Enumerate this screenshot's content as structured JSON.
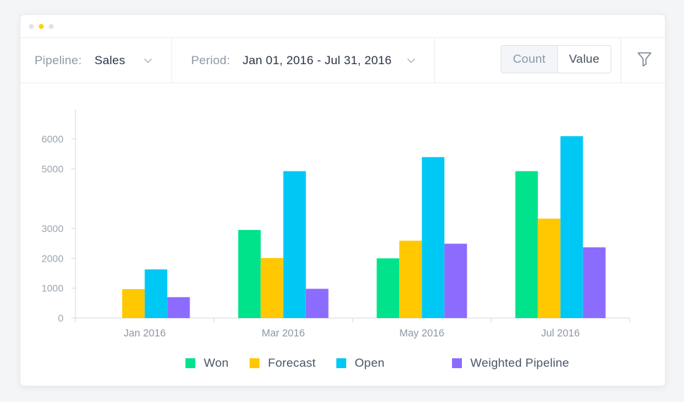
{
  "window": {
    "dots": [
      {
        "name": "dot-1",
        "color": "#dfe3e9"
      },
      {
        "name": "dot-2",
        "color": "#ffd200"
      },
      {
        "name": "dot-3",
        "color": "#dfe3e9"
      }
    ]
  },
  "toolbar": {
    "pipeline": {
      "label": "Pipeline:",
      "value": "Sales"
    },
    "period": {
      "label": "Period:",
      "value": "Jan 01, 2016 - Jul 31, 2016"
    },
    "mode_toggle": {
      "count_label": "Count",
      "value_label": "Value",
      "selected": "Value"
    },
    "filter_icon": "filter-icon"
  },
  "chart_data": {
    "type": "bar",
    "categories": [
      "Jan 2016",
      "Mar 2016",
      "May 2016",
      "Jul 2016"
    ],
    "series": [
      {
        "name": "Won",
        "color": "#00e38b",
        "values": [
          0,
          2950,
          2000,
          4920
        ]
      },
      {
        "name": "Forecast",
        "color": "#ffc800",
        "values": [
          970,
          2010,
          2590,
          3330
        ]
      },
      {
        "name": "Open",
        "color": "#00c8f5",
        "values": [
          1630,
          4920,
          5390,
          6090
        ]
      },
      {
        "name": "Weighted Pipeline",
        "color": "#8c6bff",
        "values": [
          700,
          980,
          2490,
          2370
        ]
      }
    ],
    "yticks": [
      0,
      1000,
      2000,
      3000,
      5000,
      6000
    ],
    "ylim": [
      0,
      6990
    ],
    "grid": false,
    "legend_position": "bottom-center",
    "xlabel": "",
    "ylabel": ""
  }
}
